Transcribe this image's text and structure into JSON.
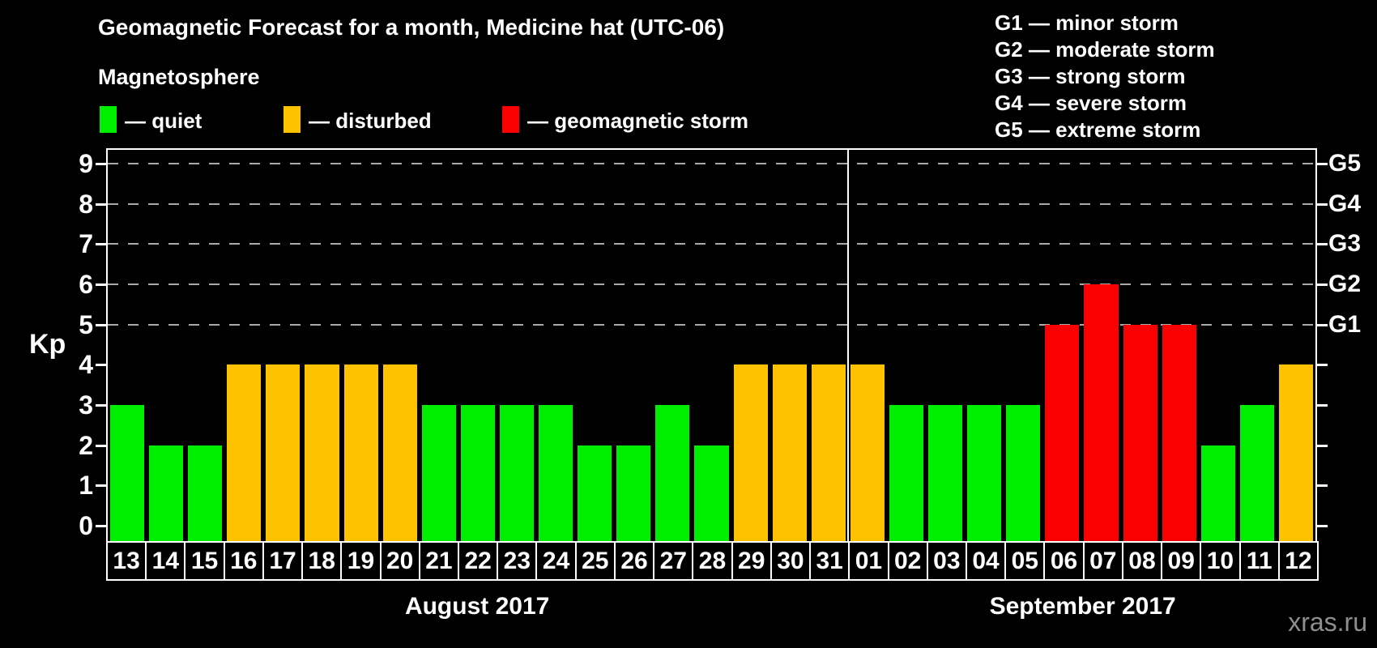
{
  "title": "Geomagnetic Forecast for a month, Medicine hat (UTC-06)",
  "subtitle": "Magnetosphere",
  "legend": {
    "items": [
      {
        "condition": "quiet",
        "label": "— quiet",
        "color": "#00ee00"
      },
      {
        "condition": "disturbed",
        "label": "— disturbed",
        "color": "#ffc200"
      },
      {
        "condition": "storm",
        "label": "— geomagnetic storm",
        "color": "#fb0000"
      }
    ]
  },
  "storm_scale_legend": [
    {
      "label": "G1 — minor storm"
    },
    {
      "label": "G2 — moderate storm"
    },
    {
      "label": "G3 — strong storm"
    },
    {
      "label": "G4 — severe storm"
    },
    {
      "label": "G5 — extreme storm"
    }
  ],
  "watermark": "xras.ru",
  "chart_data": {
    "type": "bar",
    "title": "Geomagnetic Forecast for a month, Medicine hat (UTC-06)",
    "xlabel": "",
    "ylabel": "Kp",
    "ylim": [
      0,
      9
    ],
    "yticks": [
      0,
      1,
      2,
      3,
      4,
      5,
      6,
      7,
      8,
      9
    ],
    "gridlines_at": [
      5,
      6,
      7,
      8,
      9
    ],
    "grid": "dashed horizontal at storm levels",
    "legend_position": "top",
    "right_axis": [
      {
        "label": "G1",
        "kp": 5
      },
      {
        "label": "G2",
        "kp": 6
      },
      {
        "label": "G3",
        "kp": 7
      },
      {
        "label": "G4",
        "kp": 8
      },
      {
        "label": "G5",
        "kp": 9
      }
    ],
    "colors": {
      "quiet": "#00ee00",
      "disturbed": "#ffc200",
      "storm": "#fb0000"
    },
    "months": [
      {
        "name": "August 2017",
        "days": 19
      },
      {
        "name": "September 2017",
        "days": 12
      }
    ],
    "days": [
      {
        "day": "13",
        "kp": 3,
        "condition": "quiet"
      },
      {
        "day": "14",
        "kp": 2,
        "condition": "quiet"
      },
      {
        "day": "15",
        "kp": 2,
        "condition": "quiet"
      },
      {
        "day": "16",
        "kp": 4,
        "condition": "disturbed"
      },
      {
        "day": "17",
        "kp": 4,
        "condition": "disturbed"
      },
      {
        "day": "18",
        "kp": 4,
        "condition": "disturbed"
      },
      {
        "day": "19",
        "kp": 4,
        "condition": "disturbed"
      },
      {
        "day": "20",
        "kp": 4,
        "condition": "disturbed"
      },
      {
        "day": "21",
        "kp": 3,
        "condition": "quiet"
      },
      {
        "day": "22",
        "kp": 3,
        "condition": "quiet"
      },
      {
        "day": "23",
        "kp": 3,
        "condition": "quiet"
      },
      {
        "day": "24",
        "kp": 3,
        "condition": "quiet"
      },
      {
        "day": "25",
        "kp": 2,
        "condition": "quiet"
      },
      {
        "day": "26",
        "kp": 2,
        "condition": "quiet"
      },
      {
        "day": "27",
        "kp": 3,
        "condition": "quiet"
      },
      {
        "day": "28",
        "kp": 2,
        "condition": "quiet"
      },
      {
        "day": "29",
        "kp": 4,
        "condition": "disturbed"
      },
      {
        "day": "30",
        "kp": 4,
        "condition": "disturbed"
      },
      {
        "day": "31",
        "kp": 4,
        "condition": "disturbed"
      },
      {
        "day": "01",
        "kp": 4,
        "condition": "disturbed"
      },
      {
        "day": "02",
        "kp": 3,
        "condition": "quiet"
      },
      {
        "day": "03",
        "kp": 3,
        "condition": "quiet"
      },
      {
        "day": "04",
        "kp": 3,
        "condition": "quiet"
      },
      {
        "day": "05",
        "kp": 3,
        "condition": "quiet"
      },
      {
        "day": "06",
        "kp": 5,
        "condition": "storm"
      },
      {
        "day": "07",
        "kp": 6,
        "condition": "storm"
      },
      {
        "day": "08",
        "kp": 5,
        "condition": "storm"
      },
      {
        "day": "09",
        "kp": 5,
        "condition": "storm"
      },
      {
        "day": "10",
        "kp": 2,
        "condition": "quiet"
      },
      {
        "day": "11",
        "kp": 3,
        "condition": "quiet"
      },
      {
        "day": "12",
        "kp": 4,
        "condition": "disturbed"
      }
    ]
  }
}
